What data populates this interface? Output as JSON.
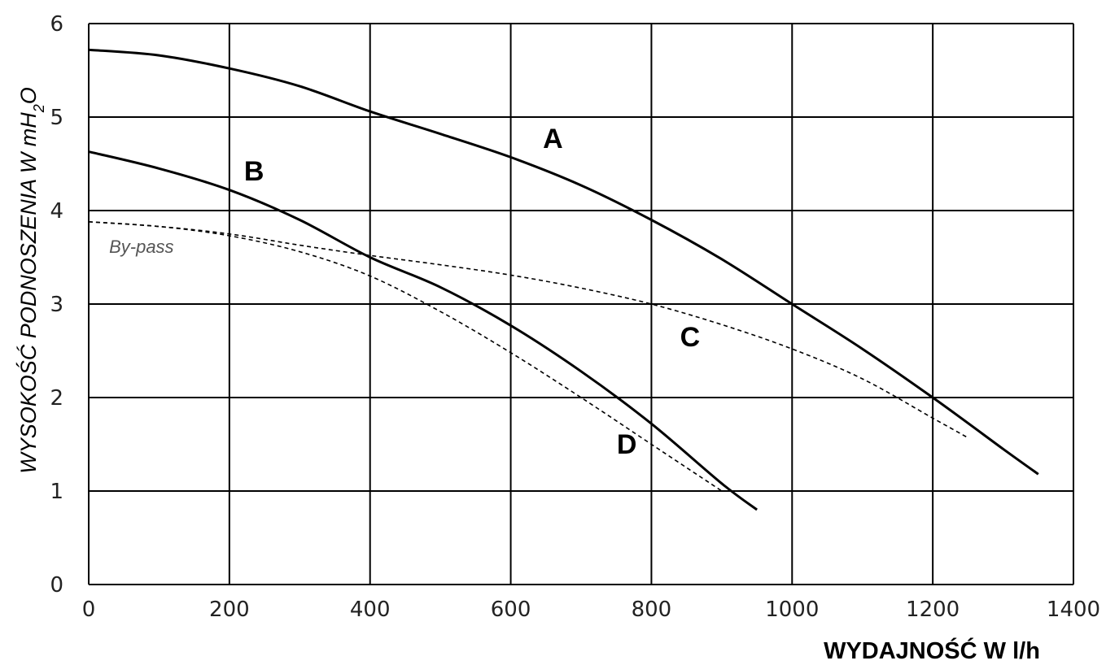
{
  "chart_data": {
    "type": "line",
    "xlabel": "WYDAJNOŚĆ W l/h",
    "ylabel": {
      "main": "WYSOKOŚĆ PODNOSZENIA W mH",
      "sub": "2",
      "tail": "O"
    },
    "xlim": [
      0,
      1400
    ],
    "ylim": [
      0,
      6
    ],
    "x_ticks": [
      "0",
      "200",
      "400",
      "600",
      "800",
      "1000",
      "1200",
      "1400"
    ],
    "y_ticks": [
      "0",
      "1",
      "2",
      "3",
      "4",
      "5",
      "6"
    ],
    "grid": true,
    "series": [
      {
        "name": "A",
        "style": "solid",
        "x": [
          0,
          100,
          200,
          300,
          400,
          500,
          600,
          700,
          800,
          900,
          1000,
          1100,
          1200,
          1300,
          1350
        ],
        "y": [
          5.72,
          5.66,
          5.52,
          5.33,
          5.06,
          4.82,
          4.57,
          4.27,
          3.9,
          3.48,
          3.0,
          2.52,
          2.0,
          1.45,
          1.18
        ]
      },
      {
        "name": "B",
        "style": "solid",
        "x": [
          0,
          100,
          200,
          300,
          400,
          500,
          600,
          700,
          800,
          900,
          950
        ],
        "y": [
          4.63,
          4.45,
          4.22,
          3.9,
          3.5,
          3.18,
          2.77,
          2.28,
          1.72,
          1.08,
          0.8
        ]
      },
      {
        "name": "C",
        "style": "dashed",
        "x": [
          0,
          100,
          200,
          300,
          400,
          500,
          600,
          700,
          800,
          900,
          1000,
          1100,
          1200,
          1250
        ],
        "y": [
          3.88,
          3.83,
          3.75,
          3.63,
          3.52,
          3.42,
          3.31,
          3.17,
          3.0,
          2.78,
          2.52,
          2.2,
          1.78,
          1.57
        ]
      },
      {
        "name": "D",
        "style": "dashed",
        "x": [
          0,
          100,
          200,
          300,
          400,
          500,
          600,
          700,
          800,
          900
        ],
        "y": [
          3.88,
          3.83,
          3.73,
          3.56,
          3.3,
          2.92,
          2.48,
          2.0,
          1.5,
          1.0
        ]
      }
    ],
    "annotations": [
      {
        "text": "A",
        "x": 660,
        "y": 4.67
      },
      {
        "text": "B",
        "x": 235,
        "y": 4.32
      },
      {
        "text": "C",
        "x": 855,
        "y": 2.55
      },
      {
        "text": "D",
        "x": 765,
        "y": 1.4
      },
      {
        "text": "By-pass",
        "x": 75,
        "y": 3.55
      }
    ]
  }
}
